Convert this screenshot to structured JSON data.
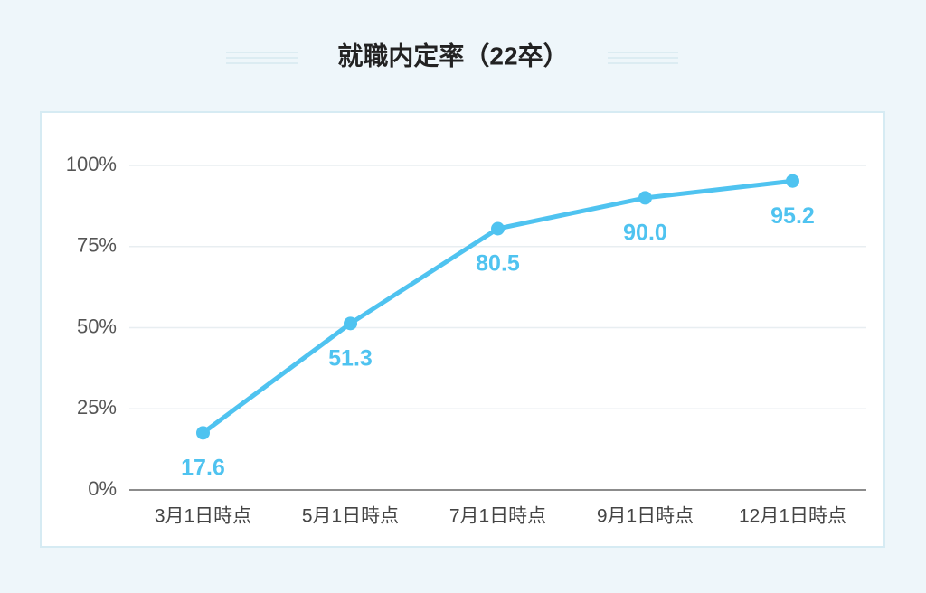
{
  "chart_data": {
    "type": "line",
    "title": "就職内定率（22卒）",
    "categories": [
      "3月1日時点",
      "5月1日時点",
      "7月1日時点",
      "9月1日時点",
      "12月1日時点"
    ],
    "values": [
      17.6,
      51.3,
      80.5,
      90.0,
      95.2
    ],
    "value_labels": [
      "17.6",
      "51.3",
      "80.5",
      "90.0",
      "95.2"
    ],
    "color": "#4fc3f0",
    "ylim": [
      0,
      100
    ],
    "yticks": [
      {
        "value": 0,
        "label": "0%"
      },
      {
        "value": 25,
        "label": "25%"
      },
      {
        "value": 50,
        "label": "50%"
      },
      {
        "value": 75,
        "label": "75%"
      },
      {
        "value": 100,
        "label": "100%"
      }
    ],
    "grid": true
  }
}
